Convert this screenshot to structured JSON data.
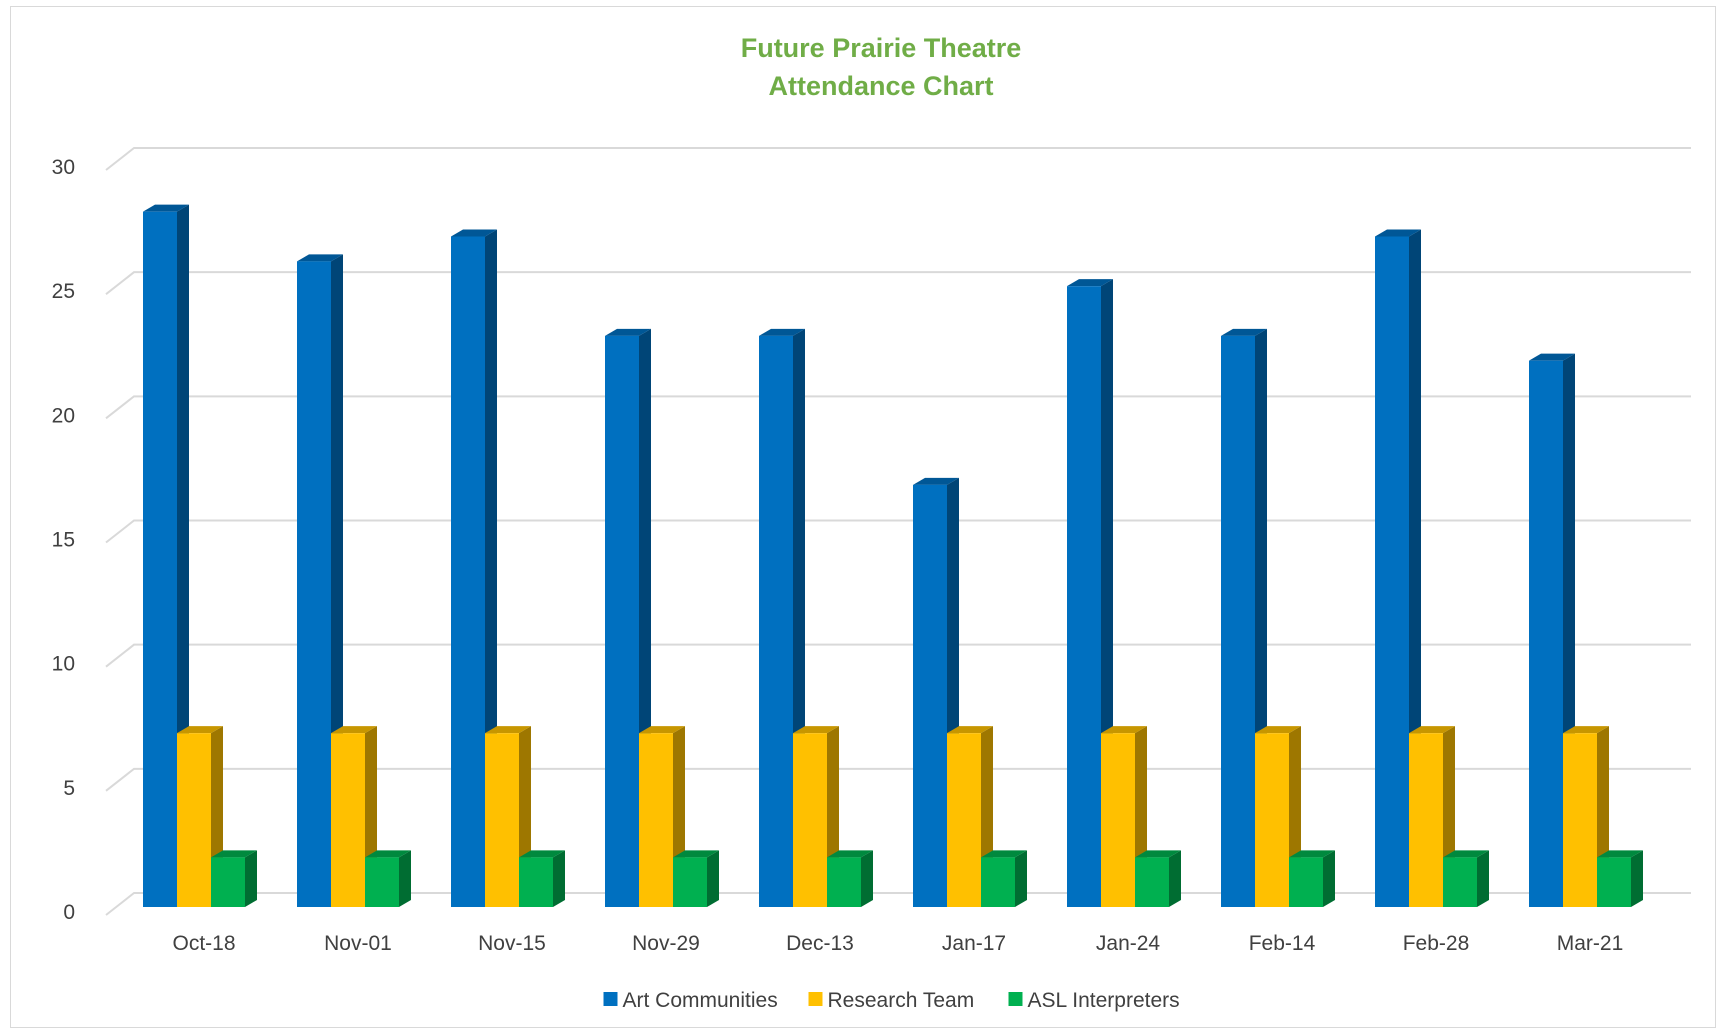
{
  "chart_data": {
    "type": "bar",
    "title": [
      "Future Prairie Theatre",
      "Attendance Chart"
    ],
    "categories": [
      "Oct-18",
      "Nov-01",
      "Nov-15",
      "Nov-29",
      "Dec-13",
      "Jan-17",
      "Jan-24",
      "Feb-14",
      "Feb-28",
      "Mar-21"
    ],
    "series": [
      {
        "name": "Art Communities",
        "color": "#0070c0",
        "values": [
          28,
          26,
          27,
          23,
          23,
          17,
          25,
          23,
          27,
          22
        ]
      },
      {
        "name": "Research Team",
        "color": "#ffc000",
        "values": [
          7,
          7,
          7,
          7,
          7,
          7,
          7,
          7,
          7,
          7
        ]
      },
      {
        "name": "ASL Interpreters",
        "color": "#00b050",
        "values": [
          2,
          2,
          2,
          2,
          2,
          2,
          2,
          2,
          2,
          2
        ]
      }
    ],
    "yticks": [
      "0",
      "5",
      "10",
      "15",
      "20",
      "25",
      "30"
    ],
    "ylim": [
      0,
      30
    ],
    "xlabel": "",
    "ylabel": "",
    "grid": true,
    "style": "3d-clustered-column",
    "legend_position": "bottom"
  }
}
